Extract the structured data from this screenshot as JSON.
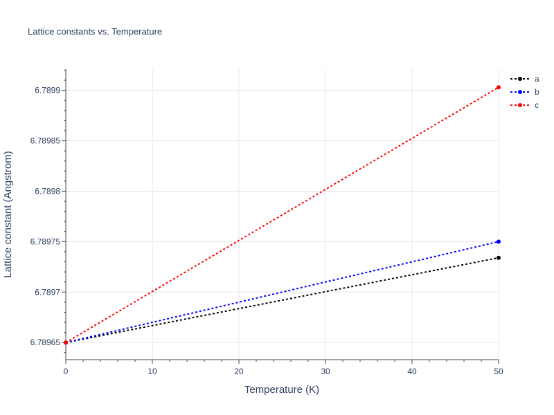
{
  "chart_data": {
    "type": "line",
    "title": "Lattice constants vs. Temperature",
    "xlabel": "Temperature (K)",
    "ylabel": "Lattice constant (Angstrom)",
    "xlim": [
      0,
      50
    ],
    "ylim": [
      6.789633,
      6.789921
    ],
    "x_ticks": [
      0,
      10,
      20,
      30,
      40,
      50
    ],
    "x_tick_labels": [
      "0",
      "10",
      "20",
      "30",
      "40",
      "50"
    ],
    "y_ticks": [
      6.78965,
      6.7897,
      6.78975,
      6.7898,
      6.78985,
      6.7899
    ],
    "y_tick_labels": [
      "6.78965",
      "6.7897",
      "6.78975",
      "6.7898",
      "6.78985",
      "6.7899"
    ],
    "grid": true,
    "legend": "top-right",
    "series": [
      {
        "name": "a",
        "color": "#000000",
        "x": [
          0,
          50
        ],
        "y": [
          6.78965,
          6.789734
        ]
      },
      {
        "name": "b",
        "color": "#0000ff",
        "x": [
          0,
          50
        ],
        "y": [
          6.78965,
          6.78975
        ]
      },
      {
        "name": "c",
        "color": "#ff0000",
        "x": [
          0,
          50
        ],
        "y": [
          6.78965,
          6.789903
        ]
      }
    ]
  }
}
